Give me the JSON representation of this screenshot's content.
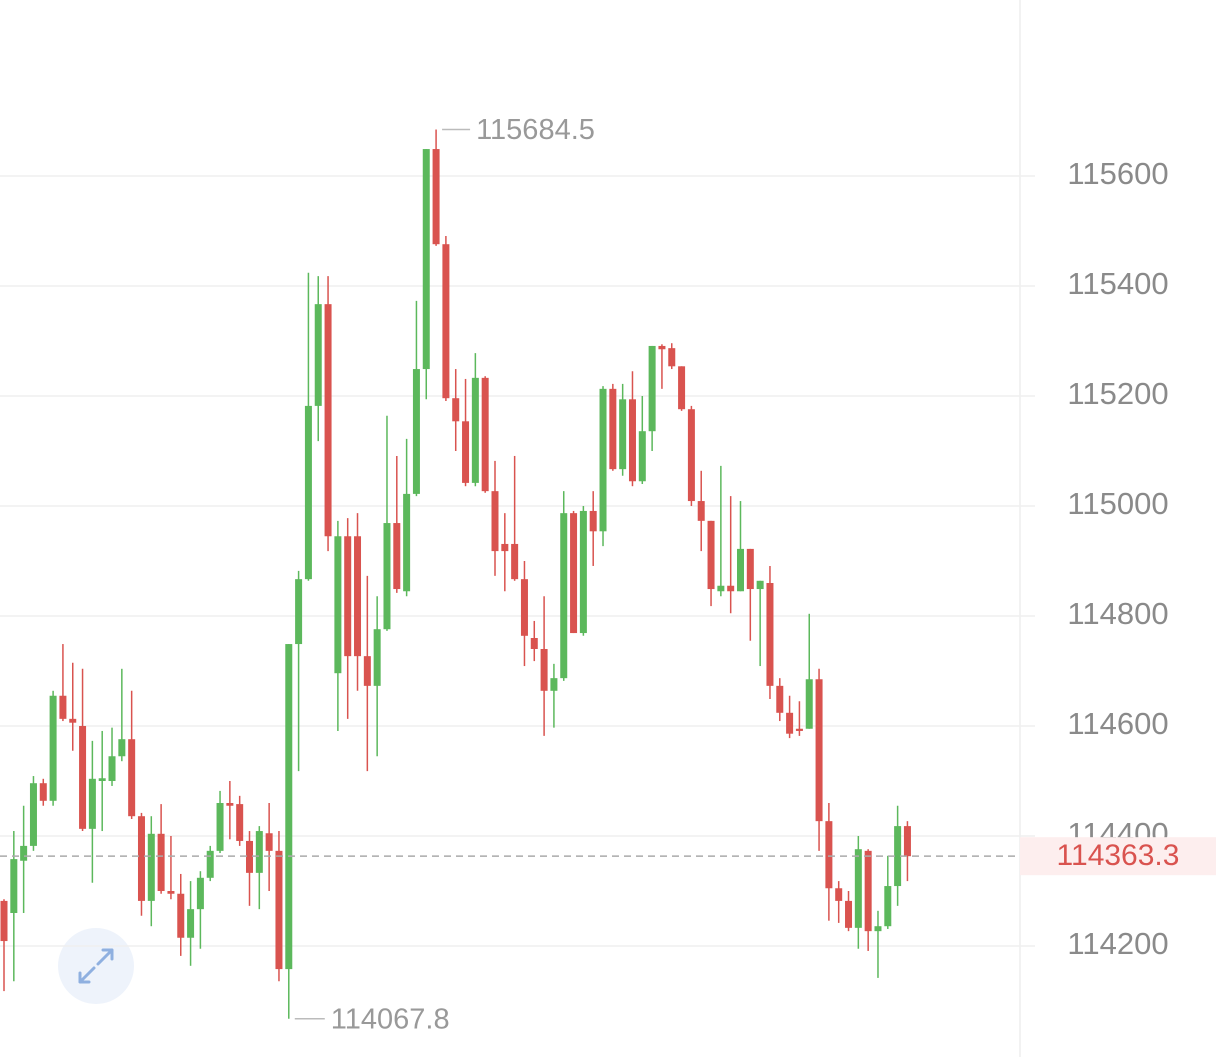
{
  "chart_data": {
    "type": "candlestick",
    "up_color": "#5cb85c",
    "down_color": "#d9534f",
    "grid": true,
    "ylim": [
      114030,
      115920
    ],
    "yticks": [
      114200,
      114400,
      114600,
      114800,
      115000,
      115200,
      115400,
      115600
    ],
    "current_price": 114363.3,
    "open": [
      114282,
      114260,
      114355,
      114382,
      114496,
      114464,
      114655,
      114613,
      114600,
      114413,
      114500,
      114500,
      114545,
      114576,
      114436,
      114282,
      114404,
      114300,
      114295,
      114215,
      114267,
      114324,
      114373,
      114460,
      114458,
      114391,
      114333,
      114405,
      114373,
      114158,
      114749,
      114867,
      115182,
      115367,
      114696,
      114945,
      114945,
      114727,
      114673,
      114776,
      114969,
      114845,
      115022,
      115249,
      115649,
      115476,
      115196,
      115154,
      115042,
      115233,
      115027,
      114931,
      114931,
      114867,
      114760,
      114740,
      114664,
      114687,
      114987,
      114769,
      114991,
      114954,
      115213,
      115067,
      115194,
      115045,
      115136,
      115291,
      115287,
      115254,
      115176,
      115009,
      114973,
      114845,
      114855,
      114845,
      114922,
      114849,
      114860,
      114673,
      114624,
      114595,
      114595,
      114685,
      114427,
      114305,
      114282,
      114233,
      114373,
      114227,
      114236,
      114309,
      114418
    ],
    "high": [
      114285,
      114409,
      114455,
      114509,
      114504,
      114664,
      114749,
      114715,
      114704,
      114573,
      114591,
      114597,
      114704,
      114664,
      114442,
      114436,
      114458,
      114400,
      114331,
      114318,
      114336,
      114382,
      114482,
      114500,
      114473,
      114409,
      114418,
      114460,
      114409,
      114749,
      114882,
      115424,
      115418,
      115418,
      114973,
      114978,
      114987,
      114873,
      114836,
      115164,
      115091,
      115122,
      115373,
      115649,
      115684.5,
      115491,
      115249,
      115231,
      115278,
      115236,
      115082,
      114987,
      115091,
      114900,
      114791,
      114836,
      114713,
      115027,
      114991,
      115000,
      115027,
      115218,
      115222,
      115222,
      115245,
      115200,
      115291,
      115294,
      115296,
      115254,
      115182,
      115064,
      114973,
      115073,
      115018,
      115009,
      114922,
      114864,
      114891,
      114687,
      114655,
      114645,
      114804,
      114704,
      114460,
      114318,
      114300,
      114400,
      114376,
      114264,
      114364,
      114455,
      114427
    ],
    "low": [
      114118,
      114136,
      114260,
      114373,
      114455,
      114455,
      114609,
      114555,
      114409,
      114315,
      114409,
      114491,
      114536,
      114431,
      114255,
      114236,
      114295,
      114285,
      114182,
      114164,
      114195,
      114318,
      114369,
      114394,
      114382,
      114273,
      114267,
      114300,
      114136,
      114067.8,
      114518,
      114864,
      115118,
      114918,
      114591,
      114613,
      114664,
      114518,
      114545,
      114773,
      114842,
      114836,
      115018,
      115194,
      115473,
      115191,
      115100,
      115036,
      115036,
      115024,
      114873,
      114845,
      114864,
      114709,
      114718,
      114582,
      114597,
      114682,
      114769,
      114764,
      114891,
      114927,
      115064,
      115055,
      115036,
      115040,
      115100,
      115213,
      115249,
      115173,
      115000,
      114918,
      114818,
      114836,
      114805,
      114845,
      114755,
      114709,
      114649,
      114609,
      114578,
      114582,
      114595,
      114373,
      114246,
      114242,
      114227,
      114195,
      114191,
      114142,
      114231,
      114273,
      114318
    ],
    "close": [
      114209,
      114358,
      114382,
      114496,
      114464,
      114655,
      114613,
      114606,
      114413,
      114504,
      114505,
      114545,
      114576,
      114436,
      114282,
      114404,
      114300,
      114295,
      114215,
      114267,
      114324,
      114373,
      114460,
      114455,
      114391,
      114333,
      114409,
      114373,
      114158,
      114749,
      114867,
      115182,
      115367,
      114945,
      114945,
      114727,
      114727,
      114673,
      114776,
      114969,
      114849,
      115022,
      115249,
      115649,
      115476,
      115196,
      115154,
      115042,
      115233,
      115027,
      114918,
      114918,
      114867,
      114764,
      114740,
      114664,
      114687,
      114987,
      114769,
      114991,
      114954,
      115213,
      115067,
      115194,
      115045,
      115136,
      115291,
      115285,
      115254,
      115176,
      115009,
      114973,
      114849,
      114855,
      114845,
      114922,
      114849,
      114864,
      114673,
      114624,
      114586,
      114591,
      114685,
      114427,
      114305,
      114282,
      114233,
      114376,
      114227,
      114236,
      114309,
      114418,
      114363.3
    ]
  }
}
